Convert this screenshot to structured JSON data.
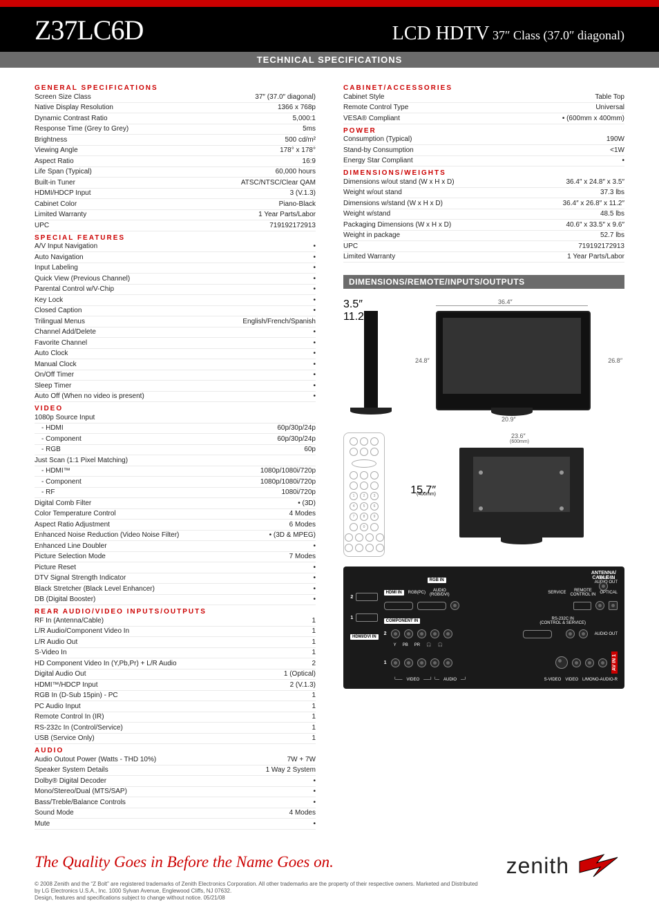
{
  "colors": {
    "accent_red": "#cc0000",
    "header_bg": "#000000",
    "subtitle_bg": "#6b6b6b",
    "text": "#222222",
    "page_bg": "#ffffff"
  },
  "header": {
    "model": "Z37LC6D",
    "product_line_big": "LCD HDTV",
    "product_line_small": " 37″ Class (37.0″ diagonal)"
  },
  "subtitle": "TECHNICAL SPECIFICATIONS",
  "sections": {
    "general": {
      "title": "GENERAL SPECIFICATIONS",
      "rows": [
        {
          "l": "Screen Size Class",
          "v": "37″ (37.0″ diagonal)"
        },
        {
          "l": "Native Display Resolution",
          "v": "1366 x 768p"
        },
        {
          "l": "Dynamic Contrast Ratio",
          "v": "5,000:1"
        },
        {
          "l": "Response Time (Grey to Grey)",
          "v": "5ms"
        },
        {
          "l": "Brightness",
          "v": "500 cd/m²"
        },
        {
          "l": "Viewing Angle",
          "v": "178° x 178°"
        },
        {
          "l": "Aspect Ratio",
          "v": "16:9"
        },
        {
          "l": "Life Span (Typical)",
          "v": "60,000 hours"
        },
        {
          "l": "Built-in Tuner",
          "v": "ATSC/NTSC/Clear QAM"
        },
        {
          "l": "HDMI/HDCP Input",
          "v": "3 (V.1.3)"
        },
        {
          "l": "Cabinet Color",
          "v": "Piano-Black"
        },
        {
          "l": "Limited Warranty",
          "v": "1 Year Parts/Labor"
        },
        {
          "l": "UPC",
          "v": "719192172913"
        }
      ]
    },
    "special": {
      "title": "SPECIAL FEATURES",
      "rows": [
        {
          "l": "A/V Input Navigation",
          "v": "•"
        },
        {
          "l": "Auto Navigation",
          "v": "•"
        },
        {
          "l": "Input Labeling",
          "v": "•"
        },
        {
          "l": "Quick View (Previous Channel)",
          "v": "•"
        },
        {
          "l": "Parental Control w/V-Chip",
          "v": "•"
        },
        {
          "l": "Key Lock",
          "v": "•"
        },
        {
          "l": "Closed Caption",
          "v": "•"
        },
        {
          "l": "Trilingual Menus",
          "v": "English/French/Spanish"
        },
        {
          "l": "Channel Add/Delete",
          "v": "•"
        },
        {
          "l": "Favorite Channel",
          "v": "•"
        },
        {
          "l": "Auto Clock",
          "v": "•"
        },
        {
          "l": "Manual Clock",
          "v": "•"
        },
        {
          "l": "On/Off Timer",
          "v": "•"
        },
        {
          "l": "Sleep Timer",
          "v": "•"
        },
        {
          "l": "Auto Off (When no video is present)",
          "v": "•"
        }
      ]
    },
    "video": {
      "title": "VIDEO",
      "rows": [
        {
          "l": "1080p Source Input",
          "v": ""
        },
        {
          "l": "- HDMI",
          "v": "60p/30p/24p",
          "indent": true
        },
        {
          "l": "- Component",
          "v": "60p/30p/24p",
          "indent": true
        },
        {
          "l": "- RGB",
          "v": "60p",
          "indent": true
        },
        {
          "l": "Just Scan (1:1 Pixel Matching)",
          "v": ""
        },
        {
          "l": "- HDMI™",
          "v": "1080p/1080i/720p",
          "indent": true
        },
        {
          "l": "- Component",
          "v": "1080p/1080i/720p",
          "indent": true
        },
        {
          "l": "- RF",
          "v": "1080i/720p",
          "indent": true
        },
        {
          "l": "Digital Comb Filter",
          "v": "• (3D)"
        },
        {
          "l": "Color Temperature Control",
          "v": "4 Modes"
        },
        {
          "l": "Aspect Ratio Adjustment",
          "v": "6 Modes"
        },
        {
          "l": "Enhanced Noise Reduction (Video Noise Filter)",
          "v": "• (3D & MPEG)"
        },
        {
          "l": "Enhanced Line Doubler",
          "v": "•"
        },
        {
          "l": "Picture Selection Mode",
          "v": "7 Modes"
        },
        {
          "l": "Picture Reset",
          "v": "•"
        },
        {
          "l": "DTV Signal Strength Indicator",
          "v": "•"
        },
        {
          "l": "Black Stretcher (Black Level Enhancer)",
          "v": "•"
        },
        {
          "l": "DB (Digital Booster)",
          "v": "•"
        }
      ]
    },
    "rear_io": {
      "title": "REAR AUDIO/VIDEO INPUTS/OUTPUTS",
      "rows": [
        {
          "l": "RF In (Antenna/Cable)",
          "v": "1"
        },
        {
          "l": "L/R Audio/Component Video In",
          "v": "1"
        },
        {
          "l": "L/R Audio Out",
          "v": "1"
        },
        {
          "l": "S-Video In",
          "v": "1"
        },
        {
          "l": "HD Component Video In (Y,Pb,Pr) + L/R Audio",
          "v": "2"
        },
        {
          "l": "Digital Audio Out",
          "v": "1 (Optical)"
        },
        {
          "l": "HDMI™/HDCP Input",
          "v": "2 (V.1.3)"
        },
        {
          "l": "RGB In (D-Sub 15pin) - PC",
          "v": "1"
        },
        {
          "l": "PC Audio Input",
          "v": "1"
        },
        {
          "l": "Remote Control In (IR)",
          "v": "1"
        },
        {
          "l": "RS-232c In (Control/Service)",
          "v": "1"
        },
        {
          "l": "USB (Service Only)",
          "v": "1"
        }
      ]
    },
    "audio": {
      "title": "AUDIO",
      "rows": [
        {
          "l": "Audio Outout Power (Watts - THD 10%)",
          "v": "7W + 7W"
        },
        {
          "l": "Speaker System Details",
          "v": "1 Way 2 System"
        },
        {
          "l": "Dolby® Digital Decoder",
          "v": "•"
        },
        {
          "l": "Mono/Stereo/Dual (MTS/SAP)",
          "v": "•"
        },
        {
          "l": "Bass/Treble/Balance Controls",
          "v": "•"
        },
        {
          "l": "Sound Mode",
          "v": "4 Modes"
        },
        {
          "l": "Mute",
          "v": "•"
        }
      ]
    },
    "cabinet": {
      "title": "CABINET/ACCESSORIES",
      "rows": [
        {
          "l": "Cabinet Style",
          "v": "Table Top"
        },
        {
          "l": "Remote Control Type",
          "v": "Universal"
        },
        {
          "l": "VESA® Compliant",
          "v": "• (600mm x 400mm)"
        }
      ]
    },
    "power": {
      "title": "POWER",
      "rows": [
        {
          "l": "Consumption (Typical)",
          "v": "190W"
        },
        {
          "l": "Stand-by Consumption",
          "v": "<1W"
        },
        {
          "l": "Energy Star Compliant",
          "v": "•"
        }
      ]
    },
    "dimensions": {
      "title": "DIMENSIONS/WEIGHTS",
      "rows": [
        {
          "l": "Dimensions w/out stand (W x H x D)",
          "v": "36.4″ x 24.8″ x 3.5″"
        },
        {
          "l": "Weight w/out stand",
          "v": "37.3 lbs"
        },
        {
          "l": "Dimensions w/stand (W x H x D)",
          "v": "36.4″ x 26.8″ x 11.2″"
        },
        {
          "l": "Weight w/stand",
          "v": "48.5 lbs"
        },
        {
          "l": "Packaging Dimensions (W x H x D)",
          "v": "40.6″ x 33.5″ x 9.6″"
        },
        {
          "l": "Weight in package",
          "v": "52.7 lbs"
        },
        {
          "l": "UPC",
          "v": "719192172913"
        },
        {
          "l": "Limited Warranty",
          "v": "1 Year Parts/Labor"
        }
      ]
    }
  },
  "diagram_bar": "DIMENSIONS/REMOTE/INPUTS/OUTPUTS",
  "diagrams": {
    "front": {
      "width": "36.4″",
      "height_nostand": "24.8″",
      "height_stand": "26.8″",
      "depth": "3.5″",
      "stand_width": "20.9″",
      "stand_depth": "11.2″"
    },
    "back": {
      "vesa_w": "23.6″",
      "vesa_w_mm": "(600mm)",
      "vesa_h": "15.7″",
      "vesa_h_mm": "(400mm)"
    }
  },
  "io_panel": {
    "top_right": {
      "antenna": "ANTENNA/\nCABLE IN"
    },
    "labels": {
      "rgb_in": "RGB IN",
      "hdmi_in": "HDMI IN",
      "rgb_pc": "RGB(PC)",
      "audio_rgb": "AUDIO\n(RGB/DVI)",
      "service": "SERVICE",
      "remote": "REMOTE\nCONTROL IN",
      "digital_audio": "DIGITAL\nAUDIO OUT",
      "optical": "OPTICAL",
      "component_in": "COMPONENT IN",
      "rs232": "RS-232C IN\n(CONTROL & SERVICE)",
      "audio_out": "AUDIO OUT",
      "hdmi_dvi": "HDMI/DVI IN",
      "av_in1": "AV IN 1",
      "y": "Y",
      "pb": "PB",
      "pr": "PR",
      "l": "L",
      "r": "R",
      "video": "VIDEO",
      "audio": "AUDIO",
      "svideo": "S-VIDEO",
      "mono": "L/MONO-AUDIO-R",
      "n1": "1",
      "n2": "2"
    }
  },
  "footer": {
    "tagline": "The Quality Goes in Before the Name Goes on.",
    "fineprint1": "© 2008 Zenith and the “Z Bolt” are registered trademarks of Zenith Electronics Corporation. All other trademarks are the property of their respective owners. Marketed and Distributed by LG Electronics U.S.A., Inc. 1000 Sylvan Avenue, Englewood Cliffs, NJ 07632.",
    "fineprint2": "Design, features and specifications subject to change without notice. 05/21/08",
    "logo_text": "zenith"
  }
}
